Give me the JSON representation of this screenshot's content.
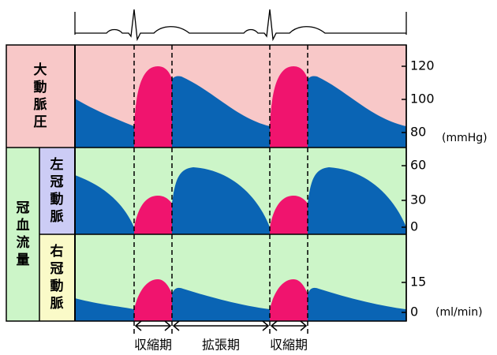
{
  "ecg_label": null,
  "panels": [
    {
      "label": "大動脈圧",
      "ticks": [
        "120",
        "100",
        "80"
      ],
      "unit": "(mmHg)"
    },
    {
      "group": "冠血流量",
      "left": {
        "label": "左冠動脈",
        "ticks": [
          "60",
          "30",
          "0"
        ]
      },
      "right": {
        "label": "右冠動脈",
        "ticks": [
          "15",
          "0"
        ],
        "unit": "(ml/min)"
      }
    }
  ],
  "phases": [
    "収縮期",
    "拡張期",
    "収縮期"
  ]
}
